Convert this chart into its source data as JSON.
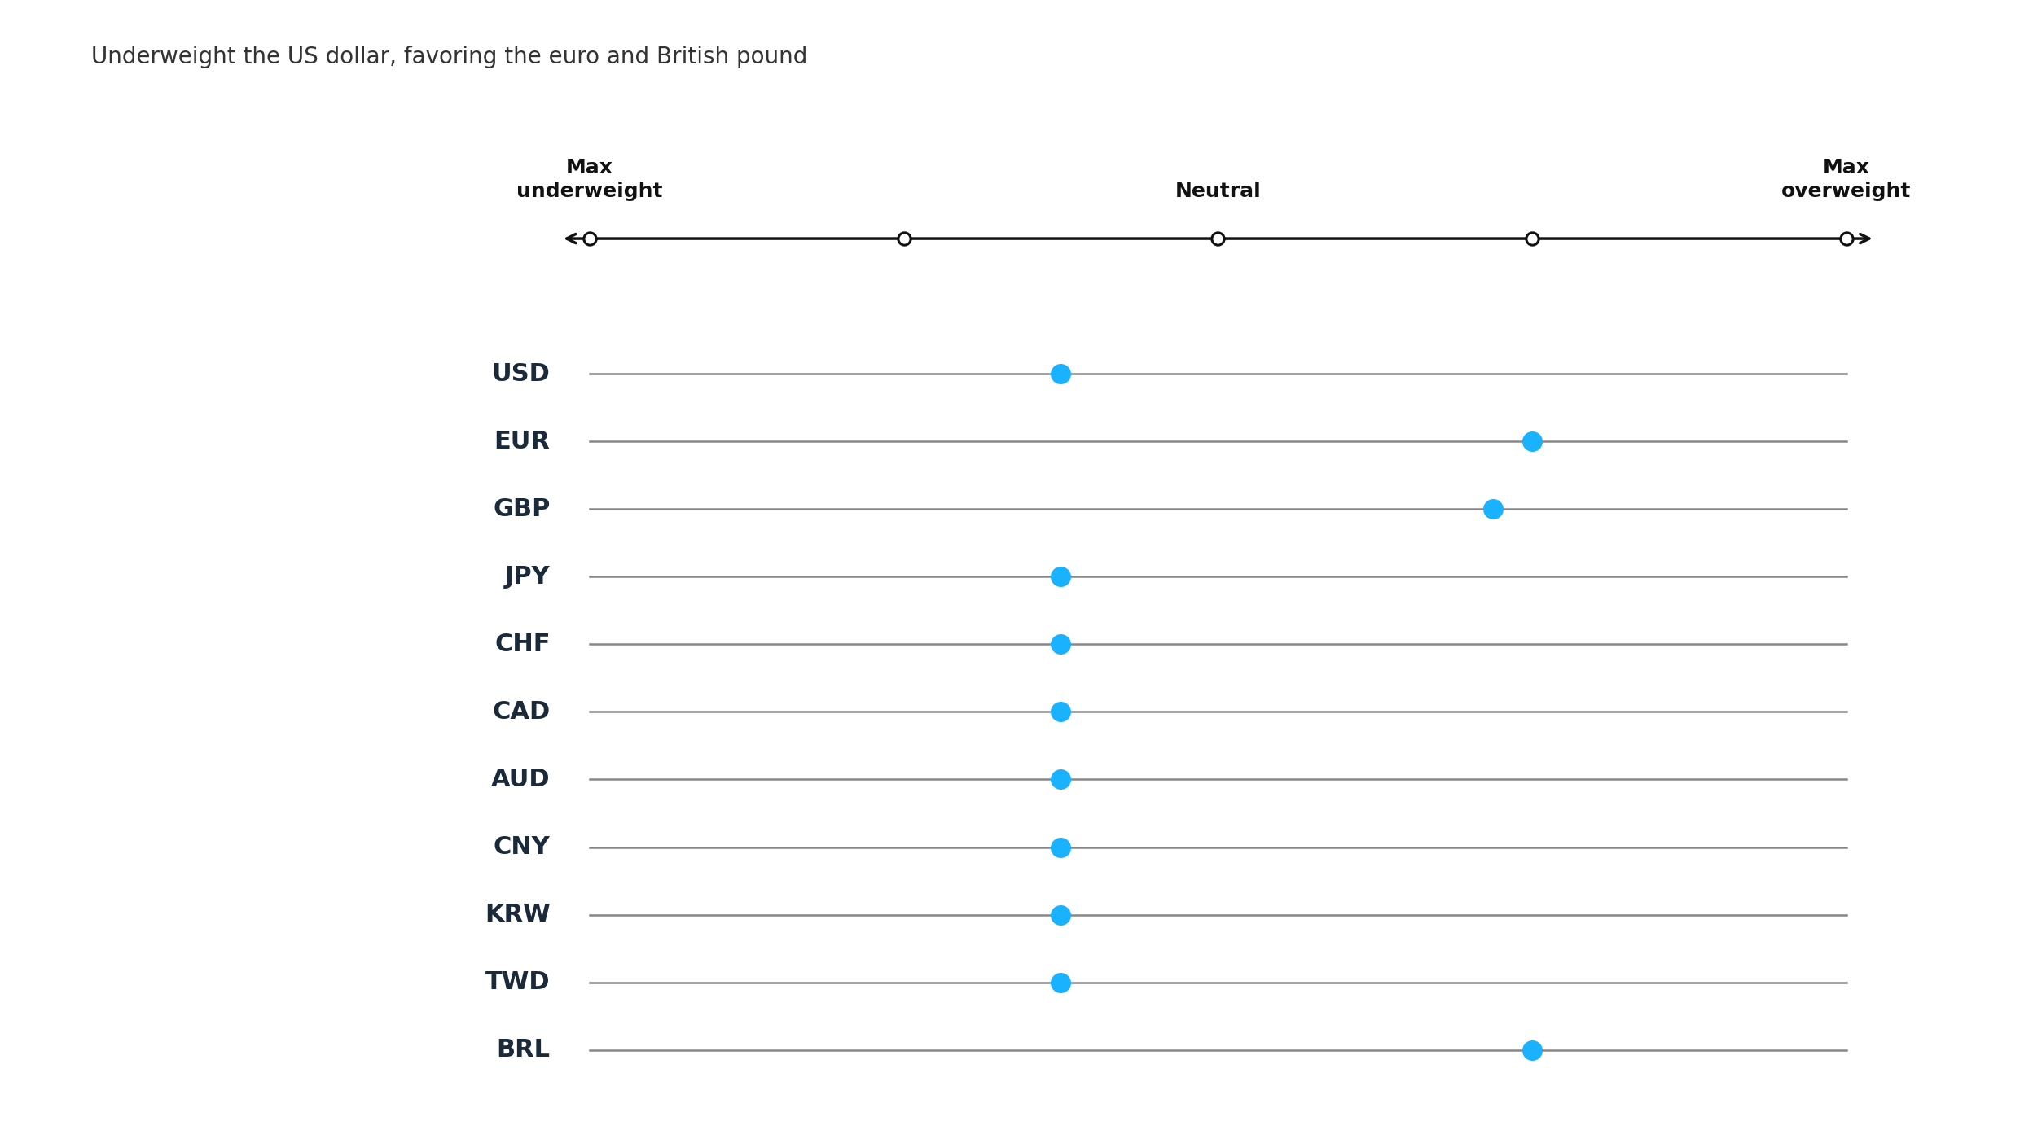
{
  "title": "Underweight the US dollar, favoring the euro and British pound",
  "currencies": [
    "USD",
    "EUR",
    "GBP",
    "JPY",
    "CHF",
    "CAD",
    "AUD",
    "CNY",
    "KRW",
    "TWD",
    "BRL"
  ],
  "positions": [
    -1,
    2,
    1.75,
    -1,
    -1,
    -1,
    -1,
    -1,
    -1,
    -1,
    2
  ],
  "x_min": -4,
  "x_max": 4,
  "scale_points": [
    -4,
    -2,
    0,
    2,
    4
  ],
  "dot_color": "#1ab2ff",
  "line_color": "#888888",
  "arrow_color": "#111111",
  "background_color": "#ffffff",
  "title_fontsize": 20,
  "label_fontsize": 22,
  "scale_fontsize": 18,
  "label_color": "#1a2a3a"
}
